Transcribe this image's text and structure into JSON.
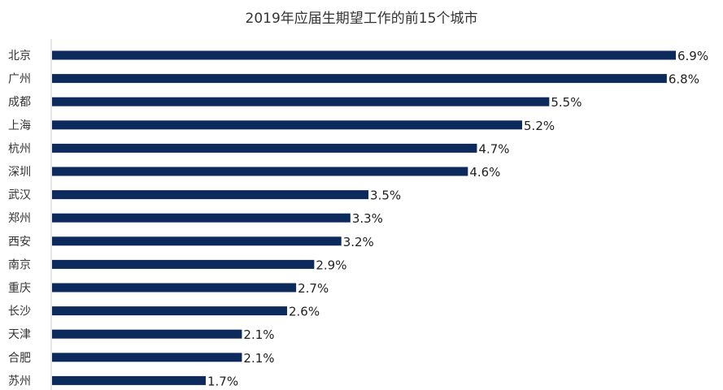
{
  "chart_data": {
    "type": "bar",
    "orientation": "horizontal",
    "title": "2019年应届生期望工作的前15个城市",
    "xlabel": "",
    "ylabel": "",
    "categories": [
      "北京",
      "广州",
      "成都",
      "上海",
      "杭州",
      "深圳",
      "武汉",
      "郑州",
      "西安",
      "南京",
      "重庆",
      "长沙",
      "天津",
      "合肥",
      "苏州"
    ],
    "values": [
      6.9,
      6.8,
      5.5,
      5.2,
      4.7,
      4.6,
      3.5,
      3.3,
      3.2,
      2.9,
      2.7,
      2.6,
      2.1,
      2.1,
      1.7
    ],
    "value_labels": [
      "6.9%",
      "6.8%",
      "5.5%",
      "5.2%",
      "4.7%",
      "4.6%",
      "3.5%",
      "3.3%",
      "3.2%",
      "2.9%",
      "2.7%",
      "2.6%",
      "2.1%",
      "2.1%",
      "1.7%"
    ],
    "xlim": [
      0,
      6.9
    ],
    "grid": false,
    "bar_color": "#0d2a5c",
    "axis_color": "#cccccc"
  }
}
